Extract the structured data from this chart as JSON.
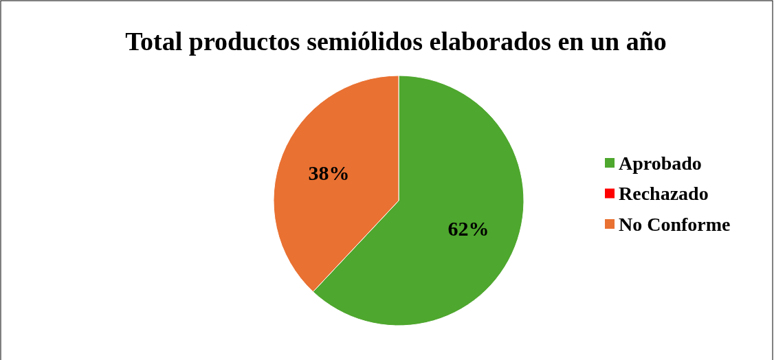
{
  "chart_data": {
    "type": "pie",
    "title": "Total productos semiólidos elaborados en un año",
    "categories": [
      "Aprobado",
      "Rechazado",
      "No Conforme"
    ],
    "values": [
      62,
      0,
      38
    ],
    "colors": [
      "#4ea72e",
      "#ff0000",
      "#e97132"
    ],
    "value_labels": [
      "62%",
      null,
      "38%"
    ],
    "legend": "right"
  }
}
